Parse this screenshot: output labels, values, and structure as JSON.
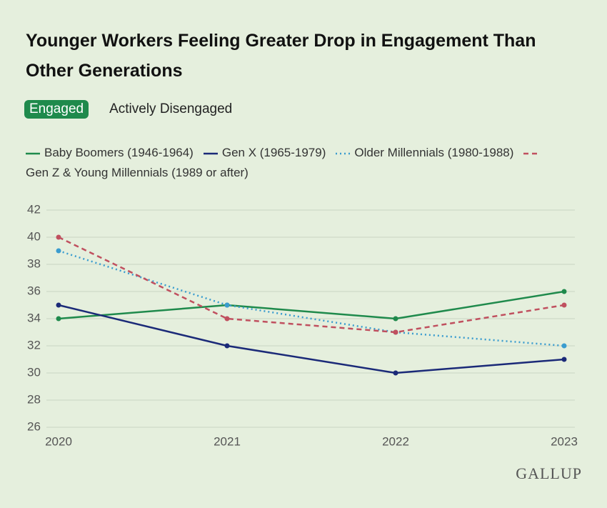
{
  "chart_data": {
    "type": "line",
    "title": "Younger Workers Feeling Greater Drop in Engagement Than Other Generations",
    "toggle_options": [
      "Engaged",
      "Actively Disengaged"
    ],
    "toggle_selected": 0,
    "categories": [
      "2020",
      "2021",
      "2022",
      "2023"
    ],
    "series": [
      {
        "name": "Baby Boomers (1946-1964)",
        "color": "#1f8a4c",
        "dash": "solid",
        "values": [
          34,
          35,
          34,
          36
        ]
      },
      {
        "name": "Gen X (1965-1979)",
        "color": "#1b2a78",
        "dash": "solid",
        "values": [
          35,
          32,
          30,
          31
        ]
      },
      {
        "name": "Older Millennials (1980-1988)",
        "color": "#3a9ccf",
        "dash": "dotted",
        "values": [
          39,
          35,
          33,
          32
        ]
      },
      {
        "name": "Gen Z & Young Millennials (1989 or after)",
        "color": "#c0505f",
        "dash": "dashed",
        "values": [
          40,
          34,
          33,
          35
        ]
      }
    ],
    "ylim": [
      26,
      42
    ],
    "yticks": [
      26,
      28,
      30,
      32,
      34,
      36,
      38,
      40,
      42
    ],
    "grid": true,
    "source": "GALLUP"
  }
}
